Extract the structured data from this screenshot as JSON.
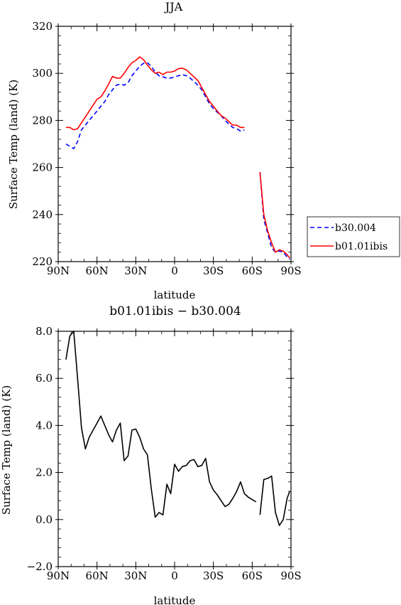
{
  "chart_data": [
    {
      "type": "line",
      "title": "JJA",
      "xlabel": "latitude",
      "ylabel": "Surface Temp (land) (K)",
      "xlim": [
        90,
        -90
      ],
      "ylim": [
        220,
        320
      ],
      "x_ticks": [
        90,
        60,
        30,
        0,
        -30,
        -60,
        -90
      ],
      "x_tick_labels": [
        "90N",
        "60N",
        "30N",
        "0",
        "30S",
        "60S",
        "90S"
      ],
      "y_ticks": [
        220,
        240,
        260,
        280,
        300,
        320
      ],
      "y_tick_labels": [
        "220",
        "240",
        "260",
        "280",
        "300",
        "320"
      ],
      "legend_position": "right",
      "series": [
        {
          "name": "b30.004",
          "color": "#0000ff",
          "dash": "dashed",
          "points": [
            [
              84,
              270
            ],
            [
              81,
              269
            ],
            [
              78,
              268
            ],
            [
              75,
              271
            ],
            [
              72,
              276
            ],
            [
              69,
              278
            ],
            [
              66,
              280
            ],
            [
              63,
              282
            ],
            [
              60,
              284
            ],
            [
              57,
              286
            ],
            [
              54,
              288
            ],
            [
              51,
              291
            ],
            [
              48,
              293
            ],
            [
              45,
              295
            ],
            [
              42,
              295.5
            ],
            [
              39,
              295
            ],
            [
              36,
              296
            ],
            [
              33,
              299
            ],
            [
              30,
              301
            ],
            [
              27,
              303
            ],
            [
              24,
              304.3
            ],
            [
              21,
              304.5
            ],
            [
              18,
              303
            ],
            [
              15,
              300.5
            ],
            [
              12,
              299
            ],
            [
              9,
              298.5
            ],
            [
              6,
              298
            ],
            [
              3,
              298
            ],
            [
              0,
              298.5
            ],
            [
              -3,
              299
            ],
            [
              -6,
              299.5
            ],
            [
              -9,
              299
            ],
            [
              -12,
              298
            ],
            [
              -15,
              296.5
            ],
            [
              -18,
              295
            ],
            [
              -21,
              293
            ],
            [
              -24,
              290
            ],
            [
              -27,
              287
            ],
            [
              -30,
              285
            ],
            [
              -33,
              283.5
            ],
            [
              -36,
              282
            ],
            [
              -39,
              280
            ],
            [
              -42,
              278.5
            ],
            [
              -45,
              277
            ],
            [
              -48,
              276.5
            ],
            [
              -51,
              275.5
            ],
            [
              -54,
              276
            ],
            null,
            [
              -66,
              258
            ],
            [
              -69,
              238
            ],
            [
              -72,
              232
            ],
            [
              -75,
              226
            ],
            [
              -78,
              224
            ],
            [
              -81,
              224.5
            ],
            [
              -84,
              224
            ],
            [
              -87,
              222
            ],
            [
              -89,
              221
            ]
          ]
        },
        {
          "name": "b01.01ibis",
          "color": "#ff0000",
          "dash": "solid",
          "points": [
            [
              84,
              277
            ],
            [
              81,
              277
            ],
            [
              78,
              276
            ],
            [
              75,
              276.5
            ],
            [
              72,
              279
            ],
            [
              69,
              281.5
            ],
            [
              66,
              284
            ],
            [
              63,
              286.5
            ],
            [
              60,
              289
            ],
            [
              57,
              290
            ],
            [
              54,
              292.5
            ],
            [
              51,
              295.5
            ],
            [
              48,
              298.7
            ],
            [
              45,
              298
            ],
            [
              42,
              298
            ],
            [
              39,
              300
            ],
            [
              36,
              302.5
            ],
            [
              33,
              304.5
            ],
            [
              30,
              305.5
            ],
            [
              27,
              307
            ],
            [
              24,
              305.8
            ],
            [
              21,
              303.5
            ],
            [
              18,
              301.5
            ],
            [
              15,
              300
            ],
            [
              12,
              300.5
            ],
            [
              9,
              299.5
            ],
            [
              6,
              300.5
            ],
            [
              3,
              300.5
            ],
            [
              0,
              301
            ],
            [
              -3,
              302
            ],
            [
              -6,
              302.2
            ],
            [
              -9,
              301.5
            ],
            [
              -12,
              300
            ],
            [
              -15,
              298.5
            ],
            [
              -18,
              297
            ],
            [
              -21,
              294
            ],
            [
              -24,
              291
            ],
            [
              -27,
              288
            ],
            [
              -30,
              286
            ],
            [
              -33,
              284
            ],
            [
              -36,
              282
            ],
            [
              -39,
              281
            ],
            [
              -42,
              279.5
            ],
            [
              -45,
              278
            ],
            [
              -48,
              278
            ],
            [
              -51,
              277
            ],
            [
              -54,
              277
            ],
            null,
            [
              -66,
              258
            ],
            [
              -69,
              240
            ],
            [
              -72,
              233
            ],
            [
              -75,
              228
            ],
            [
              -78,
              224
            ],
            [
              -81,
              225
            ],
            [
              -84,
              224.5
            ],
            [
              -87,
              223
            ],
            [
              -89,
              221.5
            ]
          ]
        }
      ]
    },
    {
      "type": "line",
      "title": "b01.01ibis − b30.004",
      "xlabel": "latitude",
      "ylabel": "Surface Temp (land) (K)",
      "xlim": [
        90,
        -90
      ],
      "ylim": [
        -2.0,
        8.0
      ],
      "x_ticks": [
        90,
        60,
        30,
        0,
        -30,
        -60,
        -90
      ],
      "x_tick_labels": [
        "90N",
        "60N",
        "30N",
        "0",
        "30S",
        "60S",
        "90S"
      ],
      "y_ticks": [
        -2,
        0,
        2,
        4,
        6,
        8
      ],
      "y_tick_labels": [
        "−2.0",
        "0.0",
        "2.0",
        "4.0",
        "6.0",
        "8.0"
      ],
      "series": [
        {
          "color": "#000000",
          "dash": "solid",
          "points": [
            [
              84,
              6.8
            ],
            [
              81,
              7.8
            ],
            [
              78,
              8.0
            ],
            [
              75,
              6.0
            ],
            [
              72,
              3.9
            ],
            [
              69,
              3.0
            ],
            [
              66,
              3.5
            ],
            [
              63,
              3.8
            ],
            [
              60,
              4.1
            ],
            [
              57,
              4.4
            ],
            [
              54,
              4.0
            ],
            [
              51,
              3.6
            ],
            [
              48,
              3.3
            ],
            [
              45,
              3.8
            ],
            [
              42,
              4.1
            ],
            [
              39,
              2.5
            ],
            [
              36,
              2.7
            ],
            [
              33,
              3.8
            ],
            [
              30,
              3.85
            ],
            [
              27,
              3.5
            ],
            [
              24,
              3.0
            ],
            [
              21,
              2.75
            ],
            [
              18,
              1.3
            ],
            [
              15,
              0.1
            ],
            [
              12,
              0.3
            ],
            [
              9,
              0.2
            ],
            [
              6,
              1.5
            ],
            [
              3,
              1.1
            ],
            [
              0,
              2.35
            ],
            [
              -3,
              2.05
            ],
            [
              -6,
              2.25
            ],
            [
              -9,
              2.3
            ],
            [
              -12,
              2.5
            ],
            [
              -15,
              2.55
            ],
            [
              -18,
              2.25
            ],
            [
              -21,
              2.3
            ],
            [
              -24,
              2.6
            ],
            [
              -27,
              1.6
            ],
            [
              -30,
              1.25
            ],
            [
              -33,
              1.05
            ],
            [
              -36,
              0.8
            ],
            [
              -39,
              0.55
            ],
            [
              -42,
              0.65
            ],
            [
              -45,
              0.9
            ],
            [
              -48,
              1.2
            ],
            [
              -51,
              1.6
            ],
            [
              -54,
              1.1
            ],
            [
              -57,
              0.95
            ],
            [
              -60,
              0.85
            ],
            [
              -63,
              0.75
            ],
            null,
            [
              -66,
              0.2
            ],
            [
              -69,
              1.7
            ],
            [
              -72,
              1.75
            ],
            [
              -75,
              1.85
            ],
            [
              -78,
              0.3
            ],
            [
              -81,
              -0.25
            ],
            [
              -84,
              0.0
            ],
            [
              -87,
              0.9
            ],
            [
              -89,
              1.2
            ]
          ]
        }
      ]
    }
  ]
}
